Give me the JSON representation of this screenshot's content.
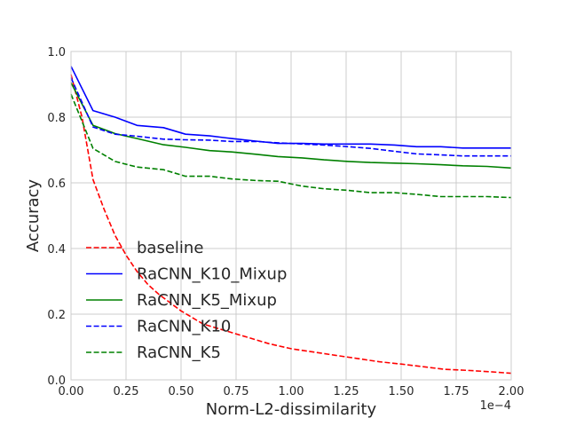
{
  "chart_data": {
    "type": "line",
    "xlabel": "Norm-L2-dissimilarity",
    "ylabel": "Accuracy",
    "x_offset_text": "1e−4",
    "xlim": [
      0,
      2.0
    ],
    "ylim": [
      0,
      1.0
    ],
    "x_ticks": [
      "0.00",
      "0.25",
      "0.50",
      "0.75",
      "1.00",
      "1.25",
      "1.50",
      "1.75",
      "2.00"
    ],
    "y_ticks": [
      "0.0",
      "0.2",
      "0.4",
      "0.6",
      "0.8",
      "1.0"
    ],
    "grid": true,
    "legend_position": "lower-left",
    "series": [
      {
        "name": "baseline",
        "color": "#ff0000",
        "dash": "dashed",
        "x": [
          0.0,
          0.05,
          0.1,
          0.15,
          0.2,
          0.25,
          0.3,
          0.35,
          0.4,
          0.5,
          0.6,
          0.7,
          0.8,
          0.9,
          1.0,
          1.1,
          1.2,
          1.3,
          1.4,
          1.5,
          1.6,
          1.7,
          1.8,
          1.9,
          2.0
        ],
        "values": [
          0.93,
          0.8,
          0.61,
          0.52,
          0.44,
          0.38,
          0.33,
          0.29,
          0.26,
          0.21,
          0.17,
          0.15,
          0.13,
          0.11,
          0.095,
          0.085,
          0.075,
          0.065,
          0.055,
          0.048,
          0.04,
          0.032,
          0.029,
          0.025,
          0.02
        ]
      },
      {
        "name": "RaCNN_K10_Mixup",
        "color": "#0000ff",
        "dash": "solid",
        "x": [
          0.0,
          0.1,
          0.2,
          0.3,
          0.42,
          0.52,
          0.63,
          0.73,
          0.84,
          0.94,
          1.05,
          1.15,
          1.26,
          1.36,
          1.47,
          1.57,
          1.68,
          1.78,
          1.89,
          2.0
        ],
        "values": [
          0.955,
          0.82,
          0.8,
          0.775,
          0.768,
          0.748,
          0.743,
          0.735,
          0.727,
          0.72,
          0.72,
          0.718,
          0.718,
          0.718,
          0.715,
          0.71,
          0.71,
          0.706,
          0.706,
          0.706
        ]
      },
      {
        "name": "RaCNN_K5_Mixup",
        "color": "#008000",
        "dash": "solid",
        "x": [
          0.0,
          0.1,
          0.2,
          0.3,
          0.42,
          0.52,
          0.63,
          0.73,
          0.84,
          0.94,
          1.05,
          1.15,
          1.26,
          1.36,
          1.47,
          1.57,
          1.68,
          1.78,
          1.89,
          2.0
        ],
        "values": [
          0.905,
          0.775,
          0.75,
          0.735,
          0.716,
          0.708,
          0.698,
          0.694,
          0.687,
          0.68,
          0.676,
          0.67,
          0.665,
          0.662,
          0.66,
          0.658,
          0.655,
          0.652,
          0.65,
          0.645
        ]
      },
      {
        "name": "RaCNN_K10",
        "color": "#0000ff",
        "dash": "dashed",
        "x": [
          0.0,
          0.1,
          0.2,
          0.3,
          0.42,
          0.52,
          0.63,
          0.73,
          0.84,
          0.94,
          1.05,
          1.15,
          1.26,
          1.36,
          1.47,
          1.57,
          1.68,
          1.78,
          1.89,
          2.0
        ],
        "values": [
          0.92,
          0.77,
          0.748,
          0.742,
          0.733,
          0.731,
          0.73,
          0.726,
          0.726,
          0.722,
          0.718,
          0.715,
          0.71,
          0.705,
          0.696,
          0.688,
          0.685,
          0.682,
          0.682,
          0.682
        ]
      },
      {
        "name": "RaCNN_K5",
        "color": "#008000",
        "dash": "dashed",
        "x": [
          0.0,
          0.1,
          0.2,
          0.3,
          0.42,
          0.52,
          0.63,
          0.73,
          0.84,
          0.94,
          1.05,
          1.15,
          1.26,
          1.36,
          1.47,
          1.57,
          1.68,
          1.78,
          1.89,
          2.0
        ],
        "values": [
          0.87,
          0.705,
          0.665,
          0.648,
          0.64,
          0.62,
          0.62,
          0.612,
          0.607,
          0.605,
          0.59,
          0.582,
          0.577,
          0.57,
          0.57,
          0.565,
          0.558,
          0.558,
          0.558,
          0.555
        ]
      }
    ]
  }
}
